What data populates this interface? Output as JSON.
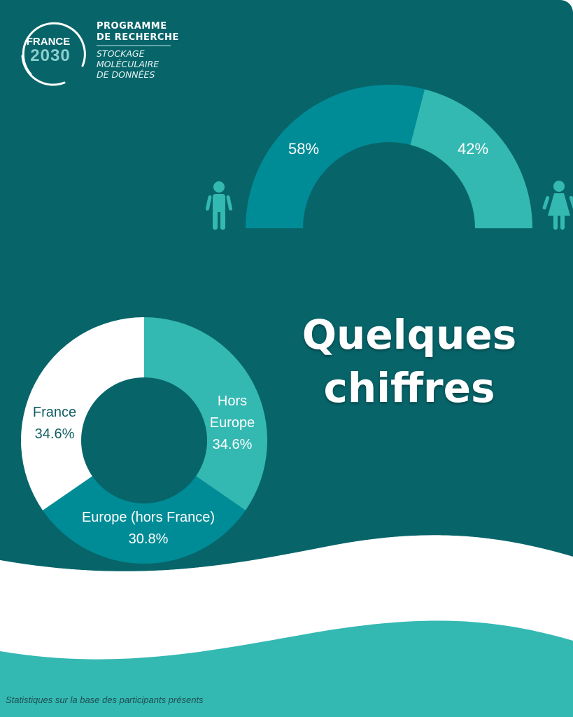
{
  "logo": {
    "badge_word": "FRANCE",
    "badge_year": "2030",
    "program_line1": "PROGRAMME",
    "program_line2": "DE RECHERCHE",
    "subtitle_line1": "STOCKAGE",
    "subtitle_line2": "MOLÉCULAIRE",
    "subtitle_line3": "DE DONNÉES"
  },
  "heading": {
    "line1": "Quelques",
    "line2": "chiffres"
  },
  "footnote": "Statistiques sur la base des participants présents",
  "colors": {
    "background": "#07656a",
    "dark_teal": "#008c96",
    "light_teal": "#34b8b2",
    "white": "#ffffff",
    "label_dark": "#0f5e62"
  },
  "icons": {
    "left": "male-person-icon",
    "right": "female-person-icon"
  },
  "chart_data": [
    {
      "type": "pie",
      "style": "half-donut",
      "slices": [
        {
          "label": "58%",
          "value": 58,
          "icon": "male-person-icon",
          "color": "#008c96"
        },
        {
          "label": "42%",
          "value": 42,
          "icon": "female-person-icon",
          "color": "#34b8b2"
        }
      ]
    },
    {
      "type": "pie",
      "style": "donut",
      "slices": [
        {
          "name_lines": [
            "Hors",
            "Europe"
          ],
          "label": "34.6%",
          "value": 34.6,
          "color": "#34b8b2"
        },
        {
          "name_lines": [
            "Europe (hors France)"
          ],
          "label": "30.8%",
          "value": 30.8,
          "color": "#008c96"
        },
        {
          "name_lines": [
            "France"
          ],
          "label": "34.6%",
          "value": 34.6,
          "color": "#ffffff"
        }
      ]
    }
  ]
}
